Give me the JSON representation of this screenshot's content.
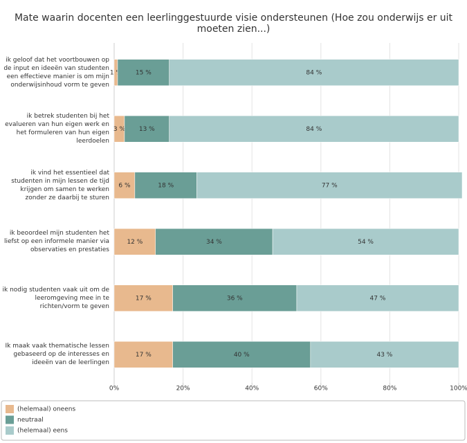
{
  "chart_data": {
    "type": "stacked-bar-horizontal",
    "title": "Mate waarin docenten een leerlinggestuurde visie ondersteunen (Hoe zou onderwijs er uit moeten zien...)",
    "categories": [
      "ik geloof dat het voortbouwen op de input en ideeën van studenten een effectieve manier is om mijn onderwijsinhoud vorm te geven",
      "ik betrek studenten bij het evalueren van hun eigen werk en het formuleren van hun eigen leerdoelen",
      "ik vind het essentieel dat studenten in mijn lessen de tijd krijgen om samen te werken zonder ze daarbij te sturen",
      "ik beoordeel mijn studenten het liefst op een informele manier via observaties en prestaties",
      "ik nodig studenten vaak uit om de leeromgeving mee in te richten/vorm te geven",
      "Ik maak vaak thematische lessen gebaseerd op de interesses en ideeën van de leerlingen"
    ],
    "series": [
      {
        "name": "(helemaal) oneens",
        "color": "#e8b98e",
        "values": [
          1,
          3,
          6,
          12,
          17,
          17
        ],
        "value_labels": [
          "1 %",
          "3 %",
          "6 %",
          "12 %",
          "17 %",
          "17 %"
        ]
      },
      {
        "name": "neutraal",
        "color": "#6a9e96",
        "values": [
          15,
          13,
          18,
          34,
          36,
          40
        ],
        "value_labels": [
          "15 %",
          "13 %",
          "18 %",
          "34 %",
          "36 %",
          "40 %"
        ]
      },
      {
        "name": "(helemaal) eens",
        "color": "#a9cbcb",
        "values": [
          84,
          84,
          77,
          54,
          47,
          43
        ],
        "value_labels": [
          "84 %",
          "84 %",
          "77 %",
          "54 %",
          "47 %",
          "43 %"
        ]
      }
    ],
    "xlim": [
      0,
      100
    ],
    "xticks": [
      {
        "value": 0,
        "label": "0%"
      },
      {
        "value": 20,
        "label": "20%"
      },
      {
        "value": 40,
        "label": "40%"
      },
      {
        "value": 60,
        "label": "60%"
      },
      {
        "value": 80,
        "label": "80%"
      },
      {
        "value": 100,
        "label": "100%"
      }
    ],
    "grid": true
  }
}
